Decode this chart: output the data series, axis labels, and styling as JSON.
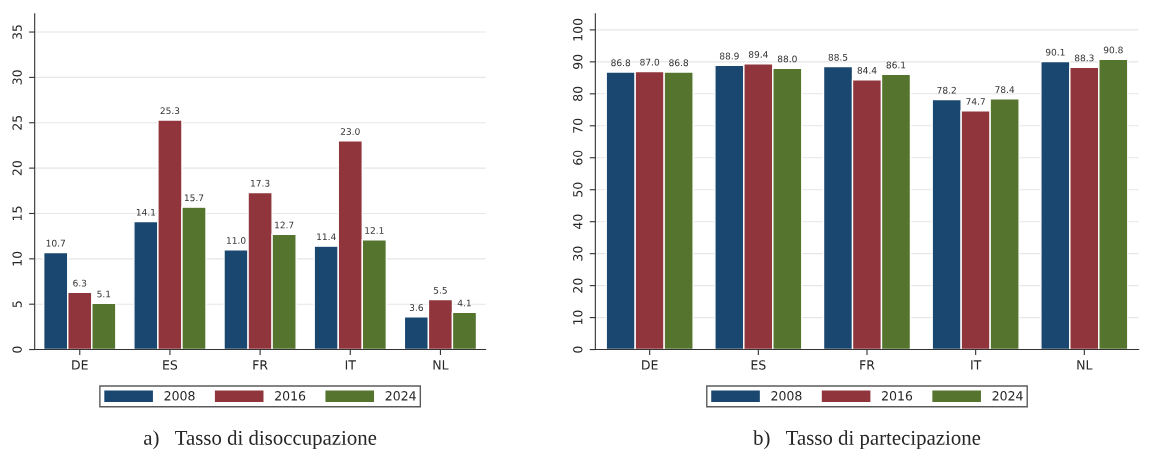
{
  "chart_data": [
    {
      "type": "bar",
      "title": "a)   Tasso di disoccupazione",
      "categories": [
        "DE",
        "ES",
        "FR",
        "IT",
        "NL"
      ],
      "series": [
        {
          "name": "2008",
          "color": "#1a476f",
          "values": [
            10.7,
            14.1,
            11.0,
            11.4,
            3.6
          ],
          "value_labels": [
            "10.7",
            "14.1",
            "11.0",
            "11.4",
            "3.6"
          ]
        },
        {
          "name": "2016",
          "color": "#90353b",
          "values": [
            6.3,
            25.3,
            17.3,
            23.0,
            5.5
          ],
          "value_labels": [
            "6.3",
            "25.3",
            "17.3",
            "23.0",
            "5.5"
          ]
        },
        {
          "name": "2024",
          "color": "#55752f",
          "values": [
            5.1,
            15.7,
            12.7,
            12.1,
            4.1
          ],
          "value_labels": [
            "5.1",
            "15.7",
            "12.7",
            "12.1",
            "4.1"
          ]
        }
      ],
      "ylim": [
        0,
        37
      ],
      "yticks": [
        0,
        5,
        10,
        15,
        20,
        25,
        30,
        35
      ],
      "grid": "y",
      "legend": "bottom"
    },
    {
      "type": "bar",
      "title": "b)   Tasso di partecipazione",
      "categories": [
        "DE",
        "ES",
        "FR",
        "IT",
        "NL"
      ],
      "series": [
        {
          "name": "2008",
          "color": "#1a476f",
          "values": [
            86.8,
            88.9,
            88.5,
            78.2,
            90.1
          ],
          "value_labels": [
            "86.8",
            "88.9",
            "88.5",
            "78.2",
            "90.1"
          ]
        },
        {
          "name": "2016",
          "color": "#90353b",
          "values": [
            87.0,
            89.4,
            84.4,
            74.7,
            88.3
          ],
          "value_labels": [
            "87.0",
            "89.4",
            "84.4",
            "74.7",
            "88.3"
          ]
        },
        {
          "name": "2024",
          "color": "#55752f",
          "values": [
            86.8,
            88.0,
            86.1,
            78.4,
            90.8
          ],
          "value_labels": [
            "86.8",
            "88.0",
            "86.1",
            "78.4",
            "90.8"
          ]
        }
      ],
      "ylim": [
        0,
        105
      ],
      "yticks": [
        0,
        10,
        20,
        30,
        40,
        50,
        60,
        70,
        80,
        90,
        100
      ],
      "grid": "y",
      "legend": "bottom"
    }
  ]
}
